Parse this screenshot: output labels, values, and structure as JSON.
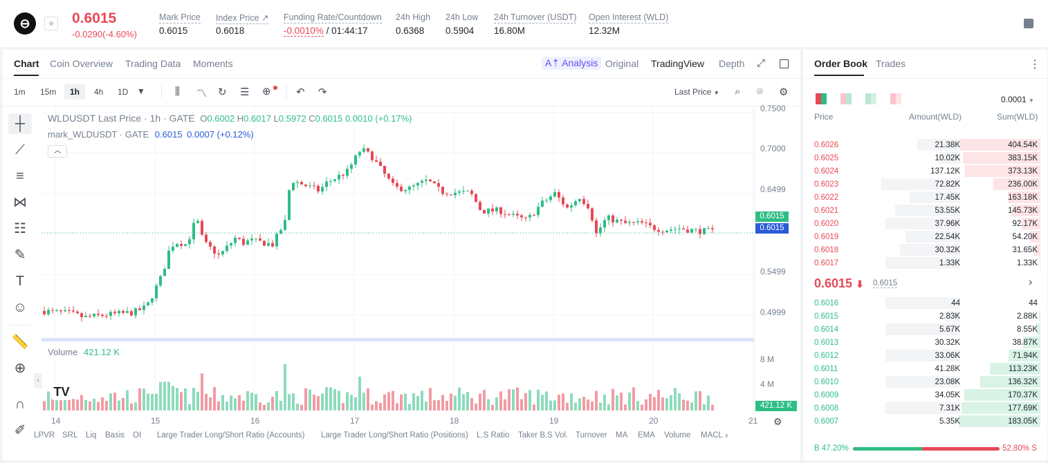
{
  "header": {
    "last_price": "0.6015",
    "change": "-0.0290(-4.60%)",
    "stats": [
      {
        "label": "Mark Price",
        "value": "0.6015"
      },
      {
        "label": "Index Price ↗",
        "value": "0.6018"
      },
      {
        "label": "Funding Rate/Countdown",
        "value_rate": "-0.0010%",
        "value_count": "/ 01:44:17"
      },
      {
        "label": "24h High",
        "value": "0.6368"
      },
      {
        "label": "24h Low",
        "value": "0.5904"
      },
      {
        "label": "24h Turnover (USDT)",
        "value": "16.80M"
      },
      {
        "label": "Open Interest (WLD)",
        "value": "12.32M"
      }
    ]
  },
  "chart_tabs": [
    "Chart",
    "Coin Overview",
    "Trading Data",
    "Moments"
  ],
  "view_tabs": {
    "analysis": "A⇡ Analysis",
    "original": "Original",
    "tradingview": "TradingView",
    "depth": "Depth"
  },
  "timeframes": [
    "1m",
    "15m",
    "1h",
    "4h",
    "1D"
  ],
  "price_type": "Last Price",
  "legend": {
    "title": "WLDUSDT Last Price · 1h · GATE",
    "o_lbl": "O",
    "o": "0.6002",
    "h_lbl": "H",
    "h": "0.6017",
    "l_lbl": "L",
    "l": "0.5972",
    "c_lbl": "C",
    "c": "0.6015",
    "chg": "0.0010 (+0.17%)",
    "mark_title": "mark_WLDUSDT · GATE",
    "mark_val": "0.6015",
    "mark_chg": "0.0007 (+0.12%)"
  },
  "volume_label": "Volume",
  "volume_value": "421.12 K",
  "chart_data": {
    "type": "candlestick",
    "price_ticks": [
      "0.7500",
      "0.7000",
      "0.6499",
      "0.5499",
      "0.4999"
    ],
    "volume_ticks": [
      "8 M",
      "4 M"
    ],
    "x_ticks": [
      "14",
      "15",
      "16",
      "17",
      "18",
      "19",
      "20",
      "21"
    ],
    "last_price": 0.6015,
    "mark_price": 0.6015,
    "last_volume": "421.12 K"
  },
  "bottom_indicators": [
    "LPVR",
    "SRL",
    "Liq",
    "Basis",
    "OI",
    "Large Trader Long/Short Ratio (Accounts)",
    "Large Trader Long/Short Ratio (Positions)",
    "L.S Ratio",
    "Taker B.S Vol.",
    "Turnover",
    "MA",
    "EMA",
    "Volume",
    "MACL"
  ],
  "orderbook": {
    "tabs": [
      "Order Book",
      "Trades"
    ],
    "precision": "0.0001",
    "headers": [
      "Price",
      "Amount(WLD)",
      "Sum(WLD)"
    ],
    "asks": [
      {
        "p": "0.6026",
        "a": "21.38K",
        "s": "404.54K",
        "af": 0.3,
        "sf": 1.0
      },
      {
        "p": "0.6025",
        "a": "10.02K",
        "s": "383.15K",
        "af": 0.15,
        "sf": 0.95
      },
      {
        "p": "0.6024",
        "a": "137.12K",
        "s": "373.13K",
        "af": 0.0,
        "sf": 0.92
      },
      {
        "p": "0.6023",
        "a": "72.82K",
        "s": "236.00K",
        "af": 0.55,
        "sf": 0.58
      },
      {
        "p": "0.6022",
        "a": "17.45K",
        "s": "163.18K",
        "af": 0.35,
        "sf": 0.4
      },
      {
        "p": "0.6021",
        "a": "53.55K",
        "s": "145.73K",
        "af": 0.45,
        "sf": 0.36
      },
      {
        "p": "0.6020",
        "a": "37.96K",
        "s": "92.17K",
        "af": 0.52,
        "sf": 0.23
      },
      {
        "p": "0.6019",
        "a": "22.54K",
        "s": "54.20K",
        "af": 0.38,
        "sf": 0.13
      },
      {
        "p": "0.6018",
        "a": "30.32K",
        "s": "31.65K",
        "af": 0.42,
        "sf": 0.08
      },
      {
        "p": "0.6017",
        "a": "1.33K",
        "s": "1.33K",
        "af": 0.52,
        "sf": 0.01
      }
    ],
    "mid_price": "0.6015",
    "mid_mark": "0.6015",
    "bids": [
      {
        "p": "0.6016",
        "a": "44",
        "s": "44",
        "af": 0.52,
        "sf": 0.0
      },
      {
        "p": "0.6015",
        "a": "2.83K",
        "s": "2.88K",
        "af": 0.1,
        "sf": 0.02
      },
      {
        "p": "0.6014",
        "a": "5.67K",
        "s": "8.55K",
        "af": 0.52,
        "sf": 0.05
      },
      {
        "p": "0.6013",
        "a": "30.32K",
        "s": "38.87K",
        "af": 0.0,
        "sf": 0.21
      },
      {
        "p": "0.6012",
        "a": "33.06K",
        "s": "71.94K",
        "af": 0.52,
        "sf": 0.39
      },
      {
        "p": "0.6011",
        "a": "41.28K",
        "s": "113.23K",
        "af": 0.0,
        "sf": 0.62
      },
      {
        "p": "0.6010",
        "a": "23.08K",
        "s": "136.32K",
        "af": 0.52,
        "sf": 0.74
      },
      {
        "p": "0.6009",
        "a": "34.05K",
        "s": "170.37K",
        "af": 0.0,
        "sf": 0.93
      },
      {
        "p": "0.6008",
        "a": "7.31K",
        "s": "177.69K",
        "af": 0.52,
        "sf": 0.97
      },
      {
        "p": "0.6007",
        "a": "5.35K",
        "s": "183.05K",
        "af": 0.0,
        "sf": 1.0
      }
    ],
    "buy_pct": "B 47.20%",
    "sell_pct": "52.80% S",
    "buy_frac": 0.472
  },
  "colors": {
    "up": "#2ebd85",
    "down": "#e84855",
    "accent": "#2a5bd7"
  }
}
